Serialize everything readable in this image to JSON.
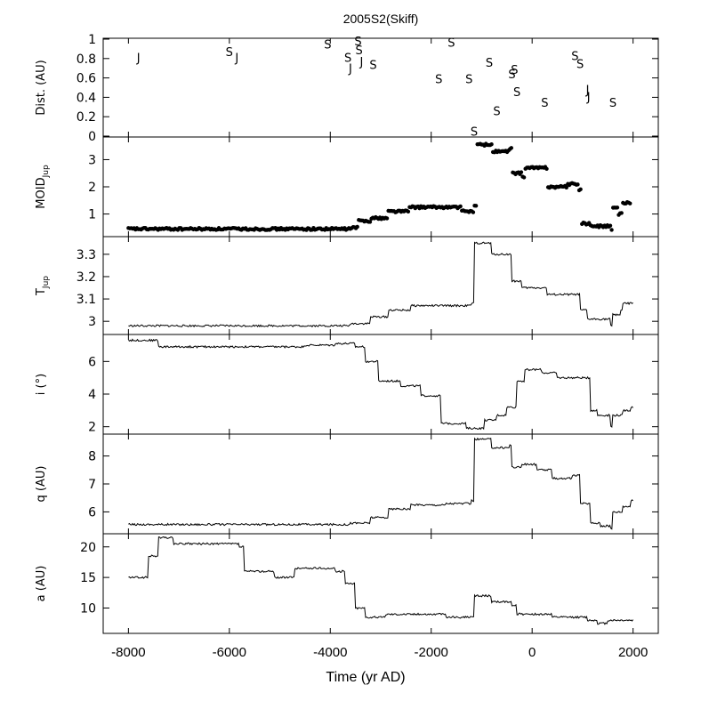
{
  "chart_data": {
    "title": "2005S2(Skiff)",
    "type": "line",
    "xlabel": "Time (yr AD)",
    "xlim": [
      -8500,
      2500
    ],
    "xticks": [
      -8000,
      -6000,
      -4000,
      -2000,
      0,
      2000
    ],
    "panels": [
      {
        "key": "dist",
        "type": "scatter",
        "ylabel": "Dist. (AU)",
        "ylim": [
          0,
          1
        ],
        "yticks": [
          "0",
          "0.2",
          "0.4",
          "0.6",
          "0.8",
          "1"
        ],
        "ytick_values": [
          0,
          0.2,
          0.4,
          0.6,
          0.8,
          1
        ],
        "encounters": [
          {
            "t": -7800,
            "d": 0.81,
            "planet": "J"
          },
          {
            "t": -6000,
            "d": 0.87,
            "planet": "S"
          },
          {
            "t": -5850,
            "d": 0.81,
            "planet": "J"
          },
          {
            "t": -4050,
            "d": 0.95,
            "planet": "S"
          },
          {
            "t": -3650,
            "d": 0.81,
            "planet": "S"
          },
          {
            "t": -3600,
            "d": 0.7,
            "planet": "J"
          },
          {
            "t": -3450,
            "d": 0.98,
            "planet": "S"
          },
          {
            "t": -3430,
            "d": 0.89,
            "planet": "S"
          },
          {
            "t": -3380,
            "d": 0.77,
            "planet": "J"
          },
          {
            "t": -3150,
            "d": 0.74,
            "planet": "S"
          },
          {
            "t": -1850,
            "d": 0.59,
            "planet": "S"
          },
          {
            "t": -1600,
            "d": 0.97,
            "planet": "S"
          },
          {
            "t": -1250,
            "d": 0.59,
            "planet": "S"
          },
          {
            "t": -1150,
            "d": 0.05,
            "planet": "S"
          },
          {
            "t": -850,
            "d": 0.76,
            "planet": "S"
          },
          {
            "t": -700,
            "d": 0.26,
            "planet": "S"
          },
          {
            "t": -400,
            "d": 0.64,
            "planet": "S"
          },
          {
            "t": -350,
            "d": 0.69,
            "planet": "S"
          },
          {
            "t": -300,
            "d": 0.46,
            "planet": "S"
          },
          {
            "t": 250,
            "d": 0.35,
            "planet": "S"
          },
          {
            "t": 850,
            "d": 0.83,
            "planet": "S"
          },
          {
            "t": 950,
            "d": 0.75,
            "planet": "S"
          },
          {
            "t": 1100,
            "d": 0.48,
            "planet": "J"
          },
          {
            "t": 1120,
            "d": 0.41,
            "planet": "J"
          },
          {
            "t": 1600,
            "d": 0.35,
            "planet": "S"
          }
        ]
      },
      {
        "key": "moid",
        "type": "scatter",
        "ylabel": "MOID",
        "ylabel_sub": "Jup",
        "ylim": [
          0.2,
          3.8
        ],
        "yticks": [
          "1",
          "2",
          "3"
        ],
        "ytick_values": [
          1,
          2,
          3
        ],
        "steps": [
          [
            -8000,
            0.45
          ],
          [
            -3600,
            0.5
          ],
          [
            -3450,
            0.75
          ],
          [
            -3200,
            0.85
          ],
          [
            -2850,
            1.1
          ],
          [
            -2450,
            1.25
          ],
          [
            -1700,
            1.25
          ],
          [
            -1400,
            1.1
          ],
          [
            -1150,
            1.3
          ],
          [
            -1100,
            3.55
          ],
          [
            -800,
            3.3
          ],
          [
            -450,
            3.4
          ],
          [
            -400,
            2.5
          ],
          [
            -200,
            2.35
          ],
          [
            -150,
            2.7
          ],
          [
            300,
            2.0
          ],
          [
            700,
            2.1
          ],
          [
            930,
            1.9
          ],
          [
            980,
            0.65
          ],
          [
            1150,
            0.55
          ],
          [
            1300,
            0.55
          ],
          [
            1550,
            0.45
          ],
          [
            1600,
            1.2
          ],
          [
            1700,
            1.0
          ],
          [
            1800,
            1.4
          ],
          [
            1950,
            1.45
          ]
        ]
      },
      {
        "key": "tjup",
        "type": "line",
        "ylabel": "T",
        "ylabel_sub": "Jup",
        "ylim": [
          2.945,
          3.375
        ],
        "yticks": [
          "3",
          "3.1",
          "3.2",
          "3.3"
        ],
        "ytick_values": [
          3.0,
          3.1,
          3.2,
          3.3
        ],
        "steps": [
          [
            -8000,
            2.98
          ],
          [
            -3600,
            2.99
          ],
          [
            -3200,
            3.02
          ],
          [
            -2850,
            3.05
          ],
          [
            -2400,
            3.07
          ],
          [
            -1700,
            3.07
          ],
          [
            -1200,
            3.08
          ],
          [
            -1150,
            3.35
          ],
          [
            -800,
            3.3
          ],
          [
            -450,
            3.3
          ],
          [
            -400,
            3.18
          ],
          [
            -200,
            3.15
          ],
          [
            300,
            3.12
          ],
          [
            800,
            3.12
          ],
          [
            950,
            3.05
          ],
          [
            1100,
            3.01
          ],
          [
            1400,
            3.01
          ],
          [
            1550,
            2.98
          ],
          [
            1600,
            3.03
          ],
          [
            1750,
            3.05
          ],
          [
            1800,
            3.08
          ],
          [
            2000,
            3.08
          ]
        ]
      },
      {
        "key": "incl",
        "type": "line",
        "ylabel": "i (°)",
        "ylim": [
          1.6,
          7.6
        ],
        "yticks": [
          "2",
          "4",
          "6"
        ],
        "ytick_values": [
          2,
          4,
          6
        ],
        "steps": [
          [
            -8000,
            7.3
          ],
          [
            -7400,
            6.9
          ],
          [
            -6000,
            6.9
          ],
          [
            -4500,
            7.0
          ],
          [
            -3900,
            7.1
          ],
          [
            -3500,
            6.9
          ],
          [
            -3300,
            6.0
          ],
          [
            -3050,
            4.8
          ],
          [
            -2600,
            4.5
          ],
          [
            -2200,
            3.9
          ],
          [
            -1800,
            2.2
          ],
          [
            -1300,
            1.9
          ],
          [
            -950,
            2.4
          ],
          [
            -700,
            2.7
          ],
          [
            -500,
            3.2
          ],
          [
            -300,
            4.8
          ],
          [
            -150,
            5.5
          ],
          [
            200,
            5.3
          ],
          [
            500,
            5.0
          ],
          [
            1000,
            5.0
          ],
          [
            1150,
            3.0
          ],
          [
            1300,
            2.7
          ],
          [
            1550,
            2.0
          ],
          [
            1600,
            2.7
          ],
          [
            1800,
            3.0
          ],
          [
            1950,
            3.2
          ]
        ]
      },
      {
        "key": "q",
        "type": "line",
        "ylabel": "q (AU)",
        "ylim": [
          5.25,
          8.75
        ],
        "yticks": [
          "6",
          "7",
          "8"
        ],
        "ytick_values": [
          6,
          7,
          8
        ],
        "steps": [
          [
            -8000,
            5.55
          ],
          [
            -3600,
            5.6
          ],
          [
            -3200,
            5.8
          ],
          [
            -2850,
            6.1
          ],
          [
            -2400,
            6.25
          ],
          [
            -1700,
            6.3
          ],
          [
            -1200,
            6.4
          ],
          [
            -1150,
            8.6
          ],
          [
            -800,
            8.3
          ],
          [
            -450,
            8.4
          ],
          [
            -400,
            7.6
          ],
          [
            -200,
            7.7
          ],
          [
            100,
            7.5
          ],
          [
            400,
            7.2
          ],
          [
            800,
            7.3
          ],
          [
            950,
            6.3
          ],
          [
            1150,
            5.6
          ],
          [
            1350,
            5.5
          ],
          [
            1550,
            5.4
          ],
          [
            1600,
            6.0
          ],
          [
            1800,
            6.2
          ],
          [
            1950,
            6.4
          ]
        ]
      },
      {
        "key": "a",
        "type": "line",
        "ylabel": "a (AU)",
        "ylim": [
          6.0,
          22.0
        ],
        "yticks": [
          "10",
          "15",
          "20"
        ],
        "ytick_values": [
          10,
          15,
          20
        ],
        "steps": [
          [
            -8000,
            15.0
          ],
          [
            -7600,
            18.5
          ],
          [
            -7400,
            21.5
          ],
          [
            -7100,
            20.5
          ],
          [
            -5800,
            20.0
          ],
          [
            -5700,
            16.0
          ],
          [
            -5100,
            15.0
          ],
          [
            -4700,
            16.5
          ],
          [
            -3900,
            16.0
          ],
          [
            -3700,
            14.0
          ],
          [
            -3500,
            10.0
          ],
          [
            -3300,
            8.5
          ],
          [
            -2900,
            9.0
          ],
          [
            -2200,
            9.0
          ],
          [
            -1700,
            8.5
          ],
          [
            -1200,
            8.5
          ],
          [
            -1150,
            12.0
          ],
          [
            -800,
            11.0
          ],
          [
            -400,
            10.5
          ],
          [
            -300,
            9.0
          ],
          [
            400,
            8.5
          ],
          [
            1100,
            8.0
          ],
          [
            1300,
            7.5
          ],
          [
            1500,
            8.0
          ],
          [
            2000,
            8.0
          ]
        ]
      }
    ]
  }
}
